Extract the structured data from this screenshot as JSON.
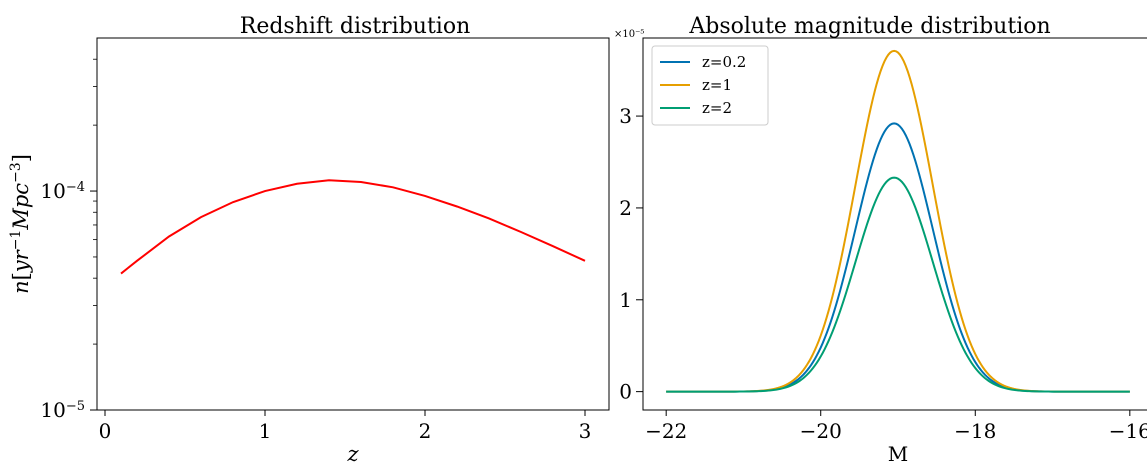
{
  "chart_data": [
    {
      "type": "line",
      "title": "Redshift distribution",
      "xlabel": "z",
      "ylabel": "n[yr^-1 Mpc^-3]",
      "xlim": [
        -0.05,
        3.15
      ],
      "ylim": [
        1e-05,
        0.0005
      ],
      "yscale": "log",
      "xticks": [
        0,
        1,
        2,
        3
      ],
      "xtick_labels": [
        "0",
        "1",
        "2",
        "3"
      ],
      "yticks": [
        1e-05,
        0.0001
      ],
      "ytick_base": "10",
      "ytick_exponents": [
        "−5",
        "−4"
      ],
      "grid": false,
      "legend": "none",
      "series": [
        {
          "color": "#ff0000",
          "x": [
            0.1,
            0.2,
            0.4,
            0.6,
            0.8,
            1.0,
            1.2,
            1.4,
            1.6,
            1.8,
            2.0,
            2.2,
            2.4,
            2.6,
            2.8,
            3.0
          ],
          "y": [
            4.2e-05,
            4.8e-05,
            6.2e-05,
            7.6e-05,
            8.9e-05,
            0.0001,
            0.000108,
            0.000112,
            0.00011,
            0.000104,
            9.5e-05,
            8.5e-05,
            7.5e-05,
            6.5e-05,
            5.6e-05,
            4.8e-05
          ]
        }
      ]
    },
    {
      "type": "line",
      "title": "Absolute magnitude distribution",
      "xlabel": "M",
      "ylabel": "",
      "xlim": [
        -22.3,
        -15.7
      ],
      "ylim": [
        -0.2,
        3.85
      ],
      "y_multiplier": "×10⁻⁵",
      "xticks": [
        -22,
        -20,
        -18,
        -16
      ],
      "xtick_labels": [
        "−22",
        "−20",
        "−18",
        "−16"
      ],
      "yticks": [
        0,
        1,
        2,
        3
      ],
      "ytick_labels": [
        "0",
        "1",
        "2",
        "3"
      ],
      "grid": false,
      "legend": "upper-left",
      "gaussian_center": -19.05,
      "gaussian_sigma": 0.5,
      "series": [
        {
          "name": "z=0.2",
          "color": "#0072b2",
          "peak": 2.92
        },
        {
          "name": "z=1",
          "color": "#e69f00",
          "peak": 3.71
        },
        {
          "name": "z=2",
          "color": "#009e73",
          "peak": 2.33
        }
      ]
    }
  ]
}
